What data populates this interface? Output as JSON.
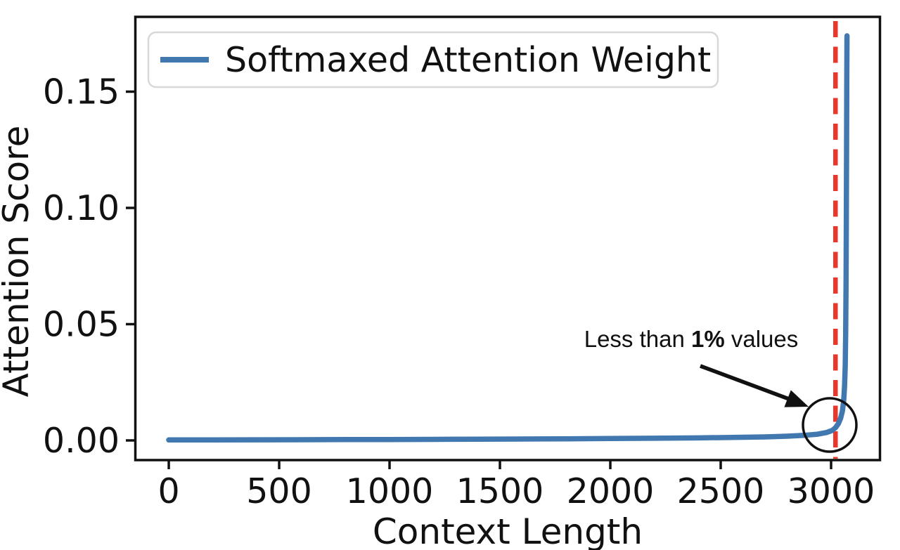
{
  "chart_data": {
    "type": "line",
    "title": "",
    "xlabel": "Context Length",
    "ylabel": "Attention Score",
    "xlim": [
      -153,
      3223
    ],
    "ylim": [
      -0.00846,
      0.18217
    ],
    "grid": false,
    "x_ticks": [
      {
        "v": 0,
        "label": "0"
      },
      {
        "v": 500,
        "label": "500"
      },
      {
        "v": 1000,
        "label": "1000"
      },
      {
        "v": 1500,
        "label": "1500"
      },
      {
        "v": 2000,
        "label": "2000"
      },
      {
        "v": 2500,
        "label": "2500"
      },
      {
        "v": 3000,
        "label": "3000"
      }
    ],
    "y_ticks": [
      {
        "v": 0.0,
        "label": "0.00"
      },
      {
        "v": 0.05,
        "label": "0.05"
      },
      {
        "v": 0.1,
        "label": "0.10"
      },
      {
        "v": 0.15,
        "label": "0.15"
      }
    ],
    "legend": {
      "position": "upper left",
      "entries": [
        {
          "label": "Softmaxed Attention Weight",
          "color": "#4278b0"
        }
      ]
    },
    "series": [
      {
        "name": "Softmaxed Attention Weight",
        "color": "#4278b0",
        "points": [
          [
            0,
            0.0002
          ],
          [
            200,
            0.00022
          ],
          [
            400,
            0.00026
          ],
          [
            600,
            0.0003
          ],
          [
            800,
            0.00035
          ],
          [
            1000,
            0.0004
          ],
          [
            1200,
            0.00046
          ],
          [
            1400,
            0.00053
          ],
          [
            1600,
            0.0006
          ],
          [
            1800,
            0.0007
          ],
          [
            2000,
            0.0008
          ],
          [
            2200,
            0.00095
          ],
          [
            2400,
            0.0011
          ],
          [
            2550,
            0.0013
          ],
          [
            2700,
            0.0015
          ],
          [
            2800,
            0.0018
          ],
          [
            2880,
            0.0022
          ],
          [
            2940,
            0.0027
          ],
          [
            2980,
            0.0034
          ],
          [
            3005,
            0.0043
          ],
          [
            3020,
            0.0055
          ],
          [
            3033,
            0.0072
          ],
          [
            3043,
            0.0095
          ],
          [
            3051,
            0.0125
          ],
          [
            3057,
            0.017
          ],
          [
            3061,
            0.023
          ],
          [
            3064,
            0.032
          ],
          [
            3066,
            0.045
          ],
          [
            3068,
            0.068
          ],
          [
            3069,
            0.09
          ],
          [
            3070,
            0.125
          ],
          [
            3071,
            0.155
          ],
          [
            3072,
            0.174
          ]
        ]
      }
    ],
    "vline": {
      "x": 3020,
      "color": "#e9382b",
      "style": "dashed"
    },
    "annotation": {
      "prefix": "Less than ",
      "bold": "1%",
      "suffix": " values",
      "points_to": {
        "x": 2990,
        "y": 0.007
      }
    },
    "colors": {
      "curve": "#4278b0",
      "vline": "#e9382b",
      "axis": "#111111"
    }
  }
}
